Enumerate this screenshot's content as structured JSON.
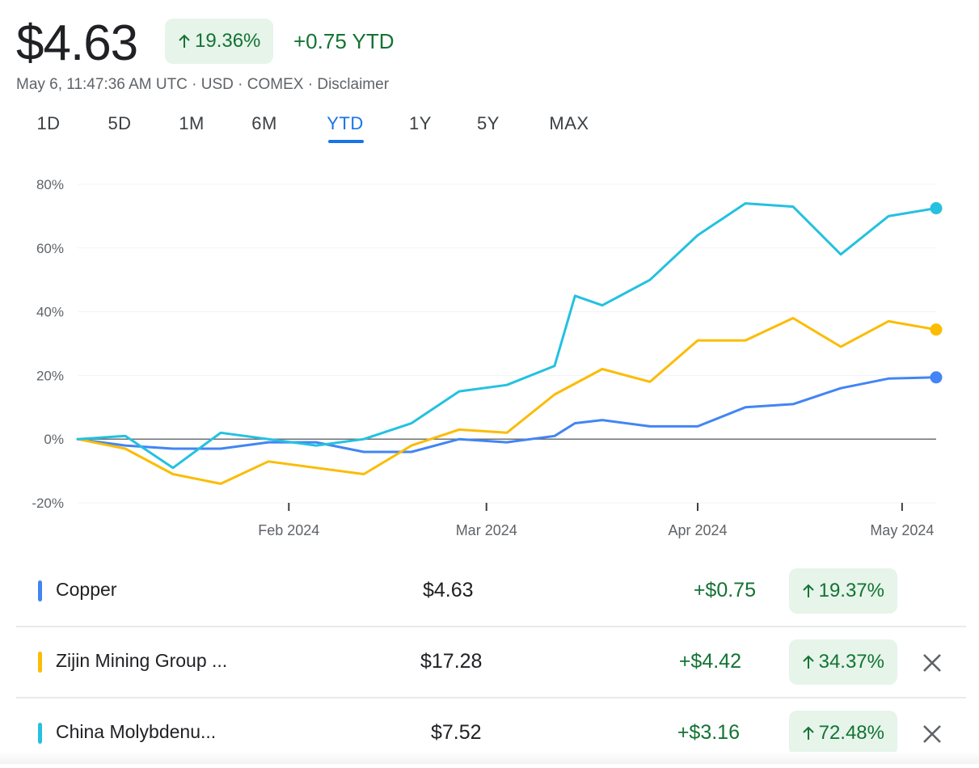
{
  "header": {
    "price": "$4.63",
    "change_pct": "19.36%",
    "change_abs": "+0.75 YTD",
    "meta": "May 6, 11:47:36 AM UTC · USD · COMEX · Disclaimer"
  },
  "range_tabs": [
    {
      "label": "1D",
      "active": false
    },
    {
      "label": "5D",
      "active": false
    },
    {
      "label": "1M",
      "active": false
    },
    {
      "label": "6M",
      "active": false
    },
    {
      "label": "YTD",
      "active": true
    },
    {
      "label": "1Y",
      "active": false
    },
    {
      "label": "5Y",
      "active": false
    },
    {
      "label": "MAX",
      "active": false
    }
  ],
  "icons": {
    "up_arrow": "arrow-up-icon",
    "remove": "close-icon"
  },
  "colors": {
    "gain_green": "#137333",
    "gain_bg": "#e6f4ea",
    "active_tab": "#1a73e8"
  },
  "chart_data": {
    "type": "line",
    "title": "",
    "xlabel": "",
    "ylabel": "",
    "x_ticks": [
      "Feb 2024",
      "Mar 2024",
      "Apr 2024",
      "May 2024"
    ],
    "y_ticks": [
      "80%",
      "60%",
      "40%",
      "20%",
      "0%",
      "-20%"
    ],
    "ylim": [
      -20,
      80
    ],
    "xlim": [
      "2024-01-01",
      "2024-05-06"
    ],
    "grid": "horizontal",
    "series": [
      {
        "name": "Copper",
        "color": "#4285f4",
        "x": [
          "2024-01-01",
          "2024-01-08",
          "2024-01-15",
          "2024-01-22",
          "2024-01-29",
          "2024-02-05",
          "2024-02-12",
          "2024-02-19",
          "2024-02-26",
          "2024-03-04",
          "2024-03-11",
          "2024-03-14",
          "2024-03-18",
          "2024-03-25",
          "2024-04-01",
          "2024-04-08",
          "2024-04-15",
          "2024-04-22",
          "2024-04-29",
          "2024-05-06"
        ],
        "values": [
          0,
          -2,
          -3,
          -3,
          -1,
          -1,
          -4,
          -4,
          0,
          -1,
          1,
          5,
          6,
          4,
          4,
          10,
          11,
          16,
          19,
          19.4
        ]
      },
      {
        "name": "Zijin Mining Group ...",
        "color": "#fbbc04",
        "x": [
          "2024-01-01",
          "2024-01-08",
          "2024-01-15",
          "2024-01-22",
          "2024-01-29",
          "2024-02-05",
          "2024-02-12",
          "2024-02-19",
          "2024-02-26",
          "2024-03-04",
          "2024-03-11",
          "2024-03-18",
          "2024-03-25",
          "2024-04-01",
          "2024-04-08",
          "2024-04-15",
          "2024-04-22",
          "2024-04-29",
          "2024-05-06"
        ],
        "values": [
          0,
          -3,
          -11,
          -14,
          -7,
          -9,
          -11,
          -2,
          3,
          2,
          14,
          22,
          18,
          31,
          31,
          38,
          29,
          37,
          34.4
        ]
      },
      {
        "name": "China Molybdenu...",
        "color": "#24c1e0",
        "x": [
          "2024-01-01",
          "2024-01-08",
          "2024-01-15",
          "2024-01-22",
          "2024-01-29",
          "2024-02-05",
          "2024-02-12",
          "2024-02-19",
          "2024-02-26",
          "2024-03-04",
          "2024-03-11",
          "2024-03-14",
          "2024-03-18",
          "2024-03-25",
          "2024-04-01",
          "2024-04-08",
          "2024-04-15",
          "2024-04-22",
          "2024-04-29",
          "2024-05-06"
        ],
        "values": [
          0,
          1,
          -9,
          2,
          0,
          -2,
          0,
          5,
          15,
          17,
          23,
          45,
          42,
          50,
          64,
          74,
          73,
          58,
          70,
          72.5
        ]
      }
    ]
  },
  "comparisons": [
    {
      "name": "Copper",
      "price": "$4.63",
      "change_abs": "+$0.75",
      "change_pct": "19.37%",
      "color": "#4285f4",
      "removable": false
    },
    {
      "name": "Zijin Mining Group ...",
      "price": "$17.28",
      "change_abs": "+$4.42",
      "change_pct": "34.37%",
      "color": "#fbbc04",
      "removable": true
    },
    {
      "name": "China Molybdenu...",
      "price": "$7.52",
      "change_abs": "+$3.16",
      "change_pct": "72.48%",
      "color": "#24c1e0",
      "removable": true
    }
  ]
}
